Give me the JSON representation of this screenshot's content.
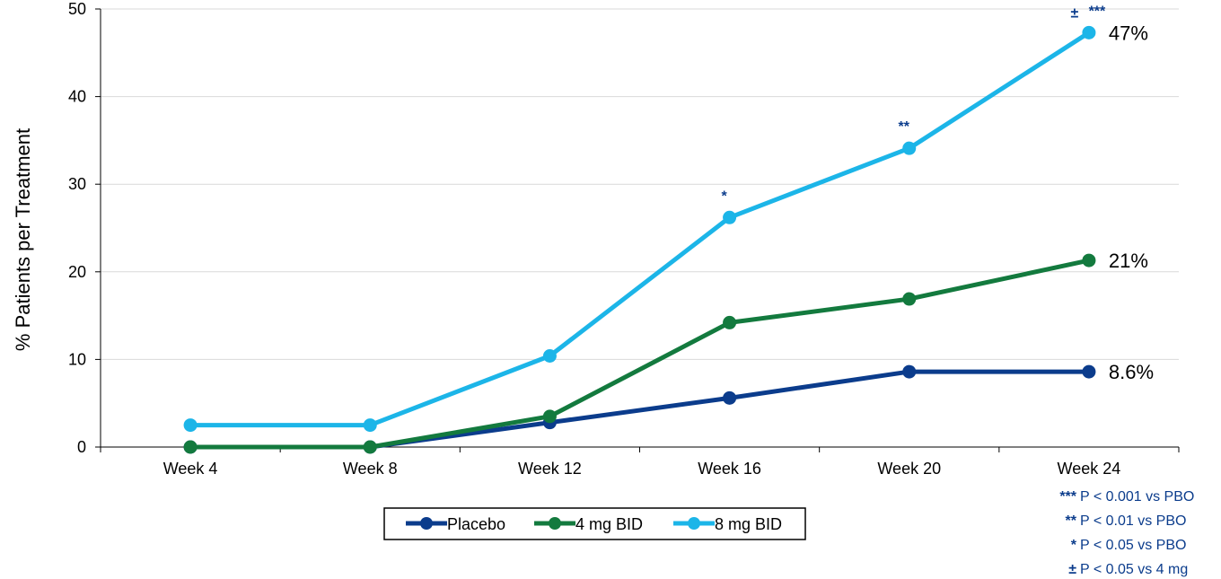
{
  "chart_data": {
    "type": "line",
    "title": "",
    "xlabel": "",
    "ylabel": "% Patients per Treatment",
    "categories": [
      "Week 4",
      "Week 8",
      "Week 12",
      "Week 16",
      "Week 20",
      "Week 24"
    ],
    "ylim": [
      0,
      50
    ],
    "yticks": [
      "0",
      "10",
      "20",
      "30",
      "40",
      "50"
    ],
    "grid": true,
    "legend_position": "bottom-center",
    "series": [
      {
        "name": "Placebo",
        "color": "#0B3C8C",
        "values": [
          0,
          0,
          2.8,
          5.6,
          8.6,
          8.6
        ],
        "end_label": "8.6%"
      },
      {
        "name": "4 mg BID",
        "color": "#137A3E",
        "values": [
          0,
          0,
          3.5,
          14.2,
          16.9,
          21.3
        ],
        "end_label": "21%"
      },
      {
        "name": "8 mg BID",
        "color": "#1CB5E8",
        "values": [
          2.5,
          2.5,
          10.4,
          26.2,
          34.1,
          47.3
        ],
        "end_label": "47%"
      }
    ],
    "annotations": [
      {
        "series": "8 mg BID",
        "category": "Week 16",
        "text": "*"
      },
      {
        "series": "8 mg BID",
        "category": "Week 20",
        "text": "**"
      },
      {
        "series": "8 mg BID",
        "category": "Week 24",
        "text": "***",
        "extra": "±"
      }
    ],
    "footnotes": [
      {
        "marker": "***",
        "text": "P < 0.001 vs PBO"
      },
      {
        "marker": "**",
        "text": "P < 0.01 vs PBO"
      },
      {
        "marker": "*",
        "text": "P < 0.05 vs PBO"
      },
      {
        "marker": "±",
        "text": "P < 0.05 vs 4 mg"
      }
    ],
    "annotation_color": "#0B3C8C"
  }
}
